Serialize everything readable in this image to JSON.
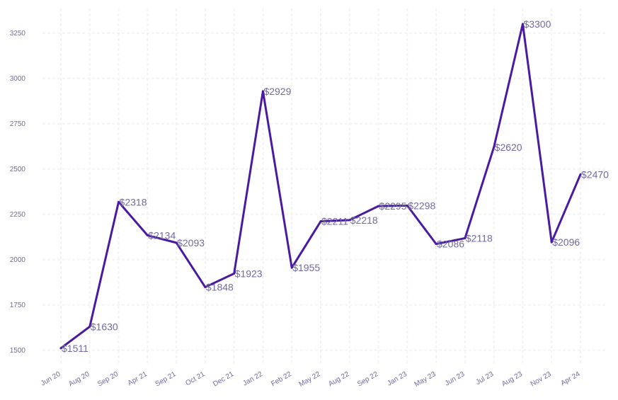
{
  "chart_data": {
    "type": "line",
    "categories": [
      "Jun 20",
      "Aug 20",
      "Sep 20",
      "Apr 21",
      "Sep 21",
      "Oct 21",
      "Dec 21",
      "Jan 22",
      "Feb 22",
      "May 22",
      "Aug 22",
      "Sep 22",
      "Jan 23",
      "May 23",
      "Jun 23",
      "Jul 23",
      "Aug 23",
      "Nov 23",
      "Apr 24"
    ],
    "values": [
      1511,
      1630,
      2318,
      2134,
      2093,
      1848,
      1923,
      2929,
      1955,
      2211,
      2218,
      2295,
      2298,
      2086,
      2118,
      2620,
      3300,
      2096,
      2470
    ],
    "data_labels": [
      "$1511",
      "$1630",
      "$2318",
      "$2134",
      "$2093",
      "$1848",
      "$1923",
      "$2929",
      "$1955",
      "$2211",
      "$2218",
      "$2295",
      "$2298",
      "$2086",
      "$2118",
      "$2620",
      "$3300",
      "$2096",
      "$2470"
    ],
    "y_ticks": [
      1500,
      1750,
      2000,
      2250,
      2500,
      2750,
      3000,
      3250
    ],
    "ylim": [
      1440,
      3370
    ],
    "grid": true,
    "title": "",
    "xlabel": "",
    "ylabel": "",
    "colors": {
      "line": "#4a1aa0",
      "text": "#6f6a9f",
      "grid": "#f3f3f3"
    }
  }
}
